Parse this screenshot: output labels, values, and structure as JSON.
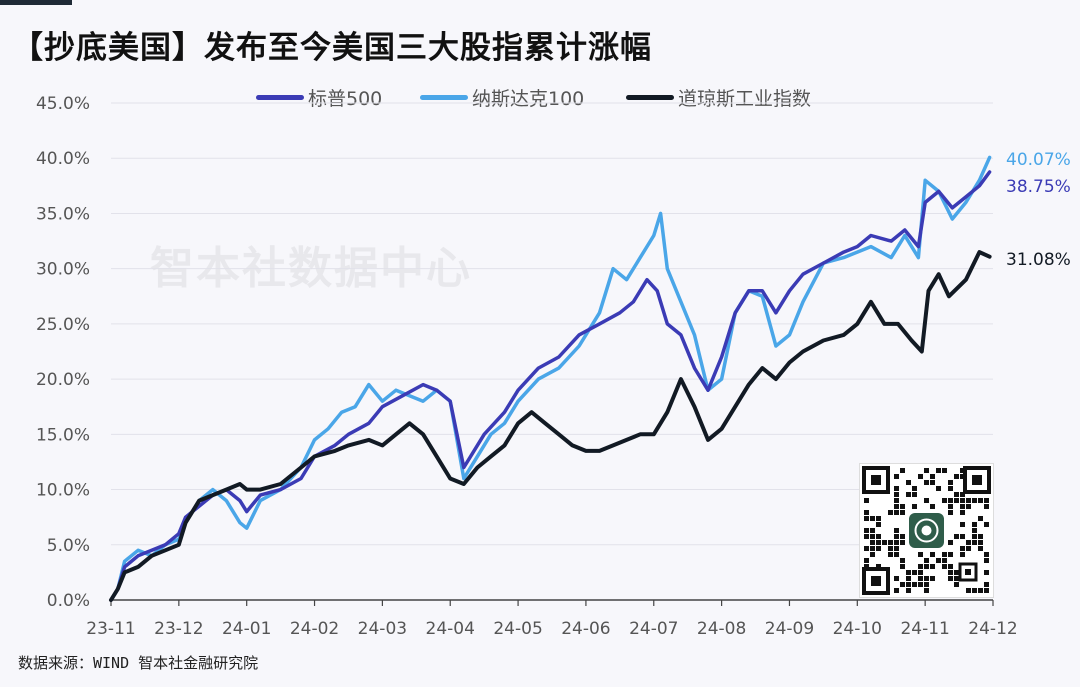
{
  "title": "【抄底美国】发布至今美国三大股指累计涨幅",
  "watermark": "智本社数据中心",
  "footer": "数据来源：WIND 智本社金融研究院",
  "qr_icon": "qr-code-icon",
  "chart_data": {
    "type": "line",
    "xlabel": "",
    "ylabel": "",
    "ylim": [
      0,
      45
    ],
    "yticks": [
      "0.0%",
      "5.0%",
      "10.0%",
      "15.0%",
      "20.0%",
      "25.0%",
      "30.0%",
      "35.0%",
      "40.0%",
      "45.0%"
    ],
    "x_tick_labels": [
      "23-11",
      "23-12",
      "24-01",
      "24-02",
      "24-03",
      "24-04",
      "24-05",
      "24-06",
      "24-07",
      "24-08",
      "24-09",
      "24-10",
      "24-11",
      "24-12"
    ],
    "grid": true,
    "legend": "top-center",
    "series": [
      {
        "name": "标普500",
        "color": "#3b3bb5",
        "end_label": "38.75%",
        "points": [
          [
            0,
            0
          ],
          [
            0.1,
            1
          ],
          [
            0.2,
            3
          ],
          [
            0.4,
            4
          ],
          [
            0.6,
            4.5
          ],
          [
            0.8,
            5
          ],
          [
            1.0,
            6
          ],
          [
            1.1,
            7.5
          ],
          [
            1.3,
            8.5
          ],
          [
            1.5,
            9.5
          ],
          [
            1.7,
            10
          ],
          [
            1.9,
            9
          ],
          [
            2.0,
            8
          ],
          [
            2.2,
            9.5
          ],
          [
            2.5,
            10
          ],
          [
            2.8,
            11
          ],
          [
            3.0,
            13
          ],
          [
            3.3,
            14
          ],
          [
            3.5,
            15
          ],
          [
            3.8,
            16
          ],
          [
            4.0,
            17.5
          ],
          [
            4.3,
            18.5
          ],
          [
            4.6,
            19.5
          ],
          [
            4.8,
            19
          ],
          [
            5.0,
            18
          ],
          [
            5.2,
            12
          ],
          [
            5.5,
            15
          ],
          [
            5.8,
            17
          ],
          [
            6.0,
            19
          ],
          [
            6.3,
            21
          ],
          [
            6.6,
            22
          ],
          [
            6.9,
            24
          ],
          [
            7.2,
            25
          ],
          [
            7.5,
            26
          ],
          [
            7.7,
            27
          ],
          [
            7.9,
            29
          ],
          [
            8.05,
            28
          ],
          [
            8.2,
            25
          ],
          [
            8.4,
            24
          ],
          [
            8.6,
            21
          ],
          [
            8.8,
            19
          ],
          [
            9.0,
            22
          ],
          [
            9.2,
            26
          ],
          [
            9.4,
            28
          ],
          [
            9.6,
            28
          ],
          [
            9.8,
            26
          ],
          [
            10.0,
            28
          ],
          [
            10.2,
            29.5
          ],
          [
            10.5,
            30.5
          ],
          [
            10.8,
            31.5
          ],
          [
            11.0,
            32
          ],
          [
            11.2,
            33
          ],
          [
            11.5,
            32.5
          ],
          [
            11.7,
            33.5
          ],
          [
            11.9,
            32
          ],
          [
            12.0,
            36
          ],
          [
            12.2,
            37
          ],
          [
            12.4,
            35.5
          ],
          [
            12.6,
            36.5
          ],
          [
            12.8,
            37.5
          ],
          [
            12.95,
            38.75
          ]
        ]
      },
      {
        "name": "纳斯达克100",
        "color": "#4aa6e8",
        "end_label": "40.07%",
        "points": [
          [
            0,
            0
          ],
          [
            0.1,
            1
          ],
          [
            0.2,
            3.5
          ],
          [
            0.4,
            4.5
          ],
          [
            0.6,
            4
          ],
          [
            0.8,
            5
          ],
          [
            1.0,
            5.5
          ],
          [
            1.1,
            7
          ],
          [
            1.3,
            9
          ],
          [
            1.5,
            10
          ],
          [
            1.7,
            9
          ],
          [
            1.9,
            7
          ],
          [
            2.0,
            6.5
          ],
          [
            2.2,
            9
          ],
          [
            2.5,
            10
          ],
          [
            2.8,
            12
          ],
          [
            3.0,
            14.5
          ],
          [
            3.2,
            15.5
          ],
          [
            3.4,
            17
          ],
          [
            3.6,
            17.5
          ],
          [
            3.8,
            19.5
          ],
          [
            4.0,
            18
          ],
          [
            4.2,
            19
          ],
          [
            4.4,
            18.5
          ],
          [
            4.6,
            18
          ],
          [
            4.8,
            19
          ],
          [
            5.0,
            18
          ],
          [
            5.2,
            11
          ],
          [
            5.4,
            13
          ],
          [
            5.6,
            15
          ],
          [
            5.8,
            16
          ],
          [
            6.0,
            18
          ],
          [
            6.3,
            20
          ],
          [
            6.6,
            21
          ],
          [
            6.9,
            23
          ],
          [
            7.2,
            26
          ],
          [
            7.4,
            30
          ],
          [
            7.6,
            29
          ],
          [
            7.8,
            31
          ],
          [
            8.0,
            33
          ],
          [
            8.1,
            35
          ],
          [
            8.2,
            30
          ],
          [
            8.4,
            27
          ],
          [
            8.6,
            24
          ],
          [
            8.8,
            19
          ],
          [
            9.0,
            20
          ],
          [
            9.2,
            26
          ],
          [
            9.4,
            28
          ],
          [
            9.6,
            27.5
          ],
          [
            9.8,
            23
          ],
          [
            10.0,
            24
          ],
          [
            10.2,
            27
          ],
          [
            10.5,
            30.5
          ],
          [
            10.8,
            31
          ],
          [
            11.0,
            31.5
          ],
          [
            11.2,
            32
          ],
          [
            11.5,
            31
          ],
          [
            11.7,
            33
          ],
          [
            11.9,
            31
          ],
          [
            12.0,
            38
          ],
          [
            12.2,
            37
          ],
          [
            12.4,
            34.5
          ],
          [
            12.6,
            36
          ],
          [
            12.8,
            38
          ],
          [
            12.95,
            40.07
          ]
        ]
      },
      {
        "name": "道琼斯工业指数",
        "color": "#121a24",
        "end_label": "31.08%",
        "points": [
          [
            0,
            0
          ],
          [
            0.1,
            1
          ],
          [
            0.2,
            2.5
          ],
          [
            0.4,
            3
          ],
          [
            0.6,
            4
          ],
          [
            0.8,
            4.5
          ],
          [
            1.0,
            5
          ],
          [
            1.1,
            7
          ],
          [
            1.3,
            9
          ],
          [
            1.5,
            9.5
          ],
          [
            1.7,
            10
          ],
          [
            1.9,
            10.5
          ],
          [
            2.0,
            10
          ],
          [
            2.2,
            10
          ],
          [
            2.5,
            10.5
          ],
          [
            2.8,
            12
          ],
          [
            3.0,
            13
          ],
          [
            3.3,
            13.5
          ],
          [
            3.5,
            14
          ],
          [
            3.8,
            14.5
          ],
          [
            4.0,
            14
          ],
          [
            4.2,
            15
          ],
          [
            4.4,
            16
          ],
          [
            4.6,
            15
          ],
          [
            4.8,
            13
          ],
          [
            5.0,
            11
          ],
          [
            5.2,
            10.5
          ],
          [
            5.4,
            12
          ],
          [
            5.6,
            13
          ],
          [
            5.8,
            14
          ],
          [
            6.0,
            16
          ],
          [
            6.2,
            17
          ],
          [
            6.4,
            16
          ],
          [
            6.6,
            15
          ],
          [
            6.8,
            14
          ],
          [
            7.0,
            13.5
          ],
          [
            7.2,
            13.5
          ],
          [
            7.4,
            14
          ],
          [
            7.6,
            14.5
          ],
          [
            7.8,
            15
          ],
          [
            8.0,
            15
          ],
          [
            8.2,
            17
          ],
          [
            8.4,
            20
          ],
          [
            8.6,
            17.5
          ],
          [
            8.8,
            14.5
          ],
          [
            9.0,
            15.5
          ],
          [
            9.2,
            17.5
          ],
          [
            9.4,
            19.5
          ],
          [
            9.6,
            21
          ],
          [
            9.8,
            20
          ],
          [
            10.0,
            21.5
          ],
          [
            10.2,
            22.5
          ],
          [
            10.5,
            23.5
          ],
          [
            10.8,
            24
          ],
          [
            11.0,
            25
          ],
          [
            11.2,
            27
          ],
          [
            11.4,
            25
          ],
          [
            11.6,
            25
          ],
          [
            11.8,
            23.5
          ],
          [
            11.95,
            22.5
          ],
          [
            12.05,
            28
          ],
          [
            12.2,
            29.5
          ],
          [
            12.35,
            27.5
          ],
          [
            12.6,
            29
          ],
          [
            12.8,
            31.5
          ],
          [
            12.95,
            31.08
          ]
        ]
      }
    ]
  }
}
